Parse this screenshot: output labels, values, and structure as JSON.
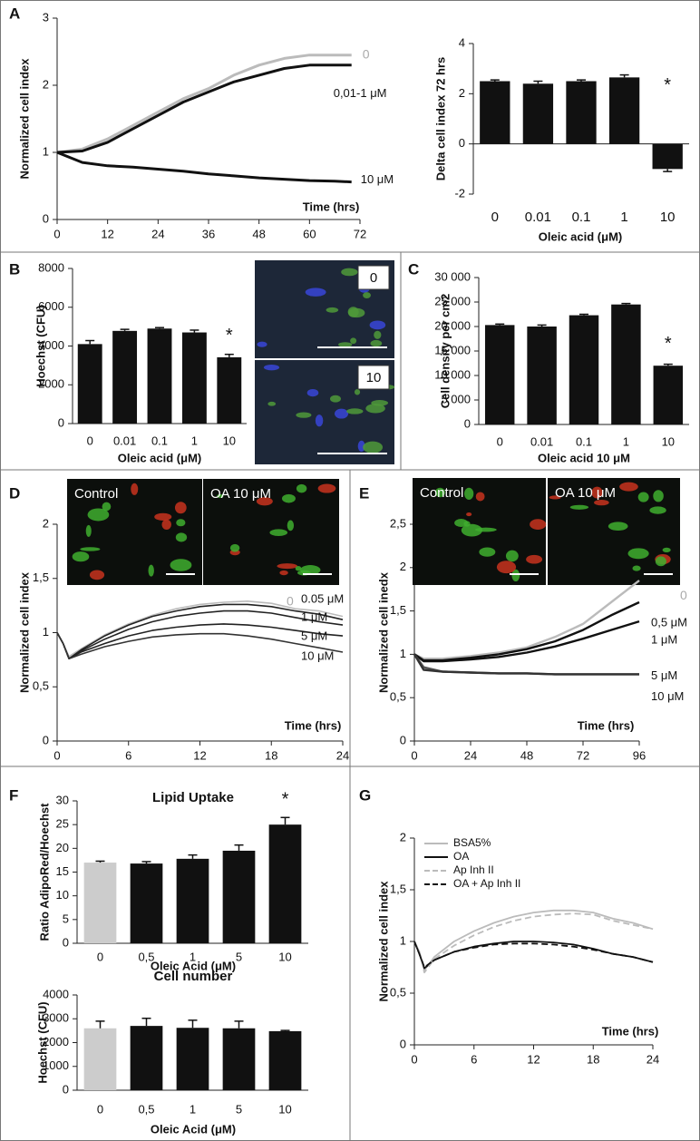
{
  "chart_data": [
    {
      "panel": "A",
      "type": "line",
      "y_label": "Normalized cell index",
      "x_label": "Time (hrs)",
      "xlim": [
        0,
        72
      ],
      "xticks": [
        0,
        12,
        24,
        36,
        48,
        60,
        72
      ],
      "ylim": [
        0,
        3
      ],
      "yticks": [
        0,
        1,
        2,
        3
      ],
      "x": [
        0,
        6,
        12,
        18,
        24,
        30,
        36,
        42,
        48,
        54,
        60,
        66,
        70
      ],
      "series": [
        {
          "name": "0",
          "color": "#bbbbbb",
          "values": [
            1,
            1.05,
            1.2,
            1.4,
            1.6,
            1.8,
            1.95,
            2.15,
            2.3,
            2.4,
            2.45,
            2.45,
            2.45
          ]
        },
        {
          "name": "0,01-1 μM",
          "color": "#111111",
          "values": [
            1,
            1.02,
            1.15,
            1.35,
            1.55,
            1.75,
            1.9,
            2.05,
            2.15,
            2.25,
            2.3,
            2.3,
            2.3
          ]
        },
        {
          "name": "10 μM",
          "color": "#111111",
          "values": [
            1,
            0.85,
            0.8,
            0.78,
            0.75,
            0.72,
            0.68,
            0.65,
            0.62,
            0.6,
            0.58,
            0.57,
            0.56
          ]
        }
      ]
    },
    {
      "type": "bar",
      "y_label": "Delta cell index 72 hrs",
      "x_label": "Oleic acid (μM)",
      "categories": [
        "0",
        "0.01",
        "0.1",
        "1",
        "10"
      ],
      "values": [
        2.5,
        2.4,
        2.5,
        2.65,
        -1
      ],
      "errors": [
        0.05,
        0.1,
        0.05,
        0.1,
        0.1
      ],
      "color": "#111111",
      "ylim": [
        -2,
        4
      ],
      "yticks": [
        -2,
        0,
        2,
        4
      ],
      "annotations": [
        {
          "text": "*",
          "x": "10"
        }
      ]
    },
    {
      "panel": "B",
      "type": "bar",
      "y_label": "Hoechst (CFU)",
      "x_label": "Oleic acid (μM)",
      "categories": [
        "0",
        "0.01",
        "0.1",
        "1",
        "10"
      ],
      "values": [
        4100,
        4780,
        4900,
        4700,
        3420
      ],
      "errors": [
        180,
        80,
        50,
        120,
        150
      ],
      "color": "#111111",
      "ylim": [
        0,
        8000
      ],
      "yticks": [
        0,
        2000,
        4000,
        6000,
        8000
      ],
      "annotations": [
        {
          "text": "*",
          "x": "10"
        }
      ],
      "images": [
        "0",
        "10"
      ]
    },
    {
      "panel": "C",
      "type": "bar",
      "y_label": "Cell density per cm2",
      "x_label": "Oleic acid 10 μM",
      "categories": [
        "0",
        "0.01",
        "0.1",
        "1",
        "10"
      ],
      "values": [
        20300,
        20000,
        22300,
        24500,
        12000
      ],
      "errors": [
        200,
        300,
        200,
        200,
        300
      ],
      "color": "#111111",
      "ylim": [
        0,
        30000
      ],
      "yticks": [
        0,
        {
          "value": 5000,
          "label": "5 000"
        },
        {
          "value": 10000,
          "label": "10 000"
        },
        {
          "value": 15000,
          "label": "15 000"
        },
        {
          "value": 20000,
          "label": "20 000"
        },
        {
          "value": 25000,
          "label": "25 000"
        },
        {
          "value": 30000,
          "label": "30 000"
        }
      ],
      "annotations": [
        {
          "text": "*",
          "x": "10"
        }
      ]
    },
    {
      "panel": "D",
      "type": "line",
      "y_label": "Normalized cell index",
      "x_label": "Time (hrs)",
      "xlim": [
        0,
        24
      ],
      "xticks": [
        0,
        6,
        12,
        18,
        24
      ],
      "ylim": [
        0,
        2
      ],
      "yticks": [
        0,
        {
          "value": 0.5,
          "label": "0,5"
        },
        1,
        {
          "value": 1.5,
          "label": "1,5"
        },
        2
      ],
      "images": [
        "Control",
        "OA 10 μM"
      ],
      "x": [
        0,
        0.5,
        1,
        2,
        4,
        6,
        8,
        10,
        12,
        14,
        16,
        18,
        20,
        22,
        24
      ],
      "series": [
        {
          "name": "0",
          "color": "#bbbbbb",
          "values": [
            1,
            0.9,
            0.78,
            0.85,
            0.98,
            1.08,
            1.16,
            1.22,
            1.26,
            1.28,
            1.29,
            1.27,
            1.22,
            1.2,
            1.15
          ]
        },
        {
          "name": "0.05 μM",
          "color": "#222222",
          "values": [
            1,
            0.9,
            0.76,
            0.84,
            0.97,
            1.07,
            1.15,
            1.2,
            1.24,
            1.26,
            1.26,
            1.24,
            1.2,
            1.17,
            1.12
          ]
        },
        {
          "name": "1 μM",
          "color": "#222222",
          "values": [
            1,
            0.9,
            0.76,
            0.83,
            0.94,
            1.03,
            1.1,
            1.15,
            1.18,
            1.2,
            1.2,
            1.18,
            1.14,
            1.1,
            1.07
          ]
        },
        {
          "name": "5 μM",
          "color": "#222222",
          "values": [
            1,
            0.9,
            0.76,
            0.82,
            0.9,
            0.97,
            1.02,
            1.05,
            1.07,
            1.08,
            1.07,
            1.05,
            1.02,
            0.99,
            0.97
          ]
        },
        {
          "name": "10 μM",
          "color": "#333333",
          "values": [
            1,
            0.9,
            0.76,
            0.8,
            0.87,
            0.92,
            0.96,
            0.98,
            0.99,
            0.99,
            0.97,
            0.94,
            0.9,
            0.86,
            0.82
          ]
        }
      ]
    },
    {
      "panel": "E",
      "type": "line",
      "y_label": "Normalized cell inedx",
      "x_label": "Time (hrs)",
      "xlim": [
        0,
        96
      ],
      "xticks": [
        0,
        24,
        48,
        72,
        96
      ],
      "ylim": [
        0,
        2.5
      ],
      "yticks": [
        0,
        {
          "value": 0.5,
          "label": "0,5"
        },
        1,
        {
          "value": 1.5,
          "label": "1,5"
        },
        2,
        {
          "value": 2.5,
          "label": "2,5"
        }
      ],
      "images": [
        "Control",
        "OA 10 μM"
      ],
      "x": [
        0,
        4,
        12,
        24,
        36,
        48,
        60,
        72,
        84,
        96
      ],
      "series": [
        {
          "name": "0",
          "color": "#bbbbbb",
          "values": [
            1,
            0.95,
            0.95,
            0.98,
            1.02,
            1.08,
            1.2,
            1.35,
            1.6,
            1.85
          ]
        },
        {
          "name": "0,5 μM",
          "color": "#111111",
          "values": [
            1,
            0.93,
            0.93,
            0.96,
            1,
            1.06,
            1.15,
            1.28,
            1.45,
            1.6
          ]
        },
        {
          "name": "1 μM",
          "color": "#111111",
          "values": [
            1,
            0.92,
            0.92,
            0.94,
            0.97,
            1.02,
            1.09,
            1.18,
            1.28,
            1.38
          ]
        },
        {
          "name": "5 μM",
          "color": "#555555",
          "values": [
            1,
            0.85,
            0.8,
            0.79,
            0.78,
            0.78,
            0.77,
            0.77,
            0.77,
            0.77
          ]
        },
        {
          "name": "10 μM",
          "color": "#333333",
          "values": [
            1,
            0.82,
            0.8,
            0.79,
            0.78,
            0.78,
            0.77,
            0.77,
            0.77,
            0.77
          ]
        }
      ]
    },
    {
      "panel": "F",
      "type": "bar",
      "title": "Lipid Uptake",
      "y_label": "Ratio AdipoRed/Hoechst",
      "x_label": "Oleic Acid (μM)",
      "categories": [
        "0",
        "0,5",
        "1",
        "5",
        "10"
      ],
      "values": [
        17,
        16.8,
        17.8,
        19.5,
        25
      ],
      "errors": [
        0.3,
        0.4,
        0.8,
        1.2,
        1.5
      ],
      "colors": [
        "#cccccc",
        "#111111",
        "#111111",
        "#111111",
        "#111111"
      ],
      "ylim": [
        0,
        30
      ],
      "yticks": [
        0,
        5,
        10,
        15,
        20,
        25,
        30
      ],
      "annotations": [
        {
          "text": "*",
          "x": "10"
        }
      ]
    },
    {
      "type": "bar",
      "title": "Cell number",
      "y_label": "Hoechst (CFU)",
      "x_label": "Oleic Acid (μM)",
      "categories": [
        "0",
        "0,5",
        "1",
        "5",
        "10"
      ],
      "values": [
        2600,
        2700,
        2620,
        2600,
        2480
      ],
      "errors": [
        300,
        320,
        320,
        300,
        30
      ],
      "colors": [
        "#cccccc",
        "#111111",
        "#111111",
        "#111111",
        "#111111"
      ],
      "ylim": [
        0,
        4000
      ],
      "yticks": [
        0,
        1000,
        2000,
        3000,
        4000
      ]
    },
    {
      "panel": "G",
      "type": "line",
      "y_label": "Normalized cell index",
      "x_label": "Time (hrs)",
      "xlim": [
        0,
        24
      ],
      "xticks": [
        0,
        6,
        12,
        18,
        24
      ],
      "ylim": [
        0,
        2
      ],
      "yticks": [
        0,
        {
          "value": 0.5,
          "label": "0,5"
        },
        1,
        {
          "value": 1.5,
          "label": "1,5"
        },
        2
      ],
      "legend": "upper left",
      "x": [
        0,
        0.5,
        1,
        2,
        4,
        6,
        8,
        10,
        12,
        14,
        16,
        18,
        20,
        22,
        24
      ],
      "series": [
        {
          "name": "BSA5%",
          "color": "#bbbbbb",
          "dash": false,
          "values": [
            1,
            0.9,
            0.72,
            0.85,
            1,
            1.1,
            1.18,
            1.24,
            1.28,
            1.3,
            1.3,
            1.28,
            1.22,
            1.18,
            1.12
          ]
        },
        {
          "name": "OA",
          "color": "#111111",
          "dash": false,
          "values": [
            1,
            0.88,
            0.74,
            0.82,
            0.9,
            0.95,
            0.98,
            1,
            1,
            0.99,
            0.97,
            0.93,
            0.88,
            0.85,
            0.8
          ]
        },
        {
          "name": "Ap Inh II",
          "color": "#bbbbbb",
          "dash": true,
          "values": [
            1,
            0.9,
            0.7,
            0.83,
            0.96,
            1.06,
            1.14,
            1.2,
            1.24,
            1.26,
            1.27,
            1.26,
            1.2,
            1.16,
            1.12
          ]
        },
        {
          "name": "OA + Ap Inh II",
          "color": "#111111",
          "dash": true,
          "values": [
            1,
            0.88,
            0.75,
            0.82,
            0.9,
            0.94,
            0.97,
            0.98,
            0.98,
            0.97,
            0.95,
            0.92,
            0.88,
            0.85,
            0.8
          ]
        }
      ]
    }
  ]
}
